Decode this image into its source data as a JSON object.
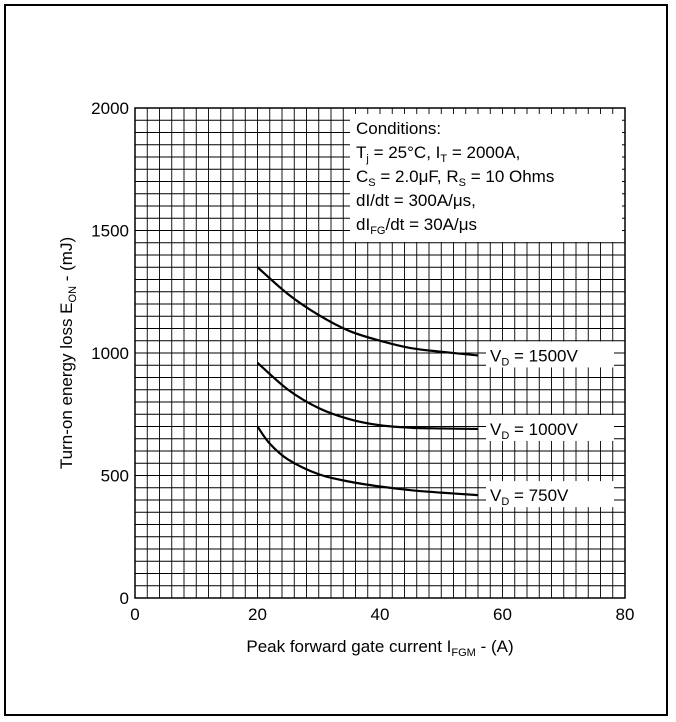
{
  "chart_data": {
    "type": "line",
    "title": "",
    "xlabel": {
      "main": "Peak forward gate current I",
      "sub": "FGM",
      "unit": " - (A)"
    },
    "ylabel": {
      "main": "Turn-on energy loss E",
      "sub": "ON",
      "unit": " - (mJ)"
    },
    "xlim": [
      0,
      80
    ],
    "ylim": [
      0,
      2000
    ],
    "x_ticks": [
      0,
      20,
      40,
      60,
      80
    ],
    "y_ticks": [
      0,
      500,
      1000,
      1500,
      2000
    ],
    "grid": true,
    "conditions": {
      "title": "Conditions:",
      "lines": [
        [
          {
            "t": "T"
          },
          {
            "t": "j",
            "sub": true
          },
          {
            "t": " = 25°C, I"
          },
          {
            "t": "T",
            "sub": true
          },
          {
            "t": " = 2000A,"
          }
        ],
        [
          {
            "t": "C"
          },
          {
            "t": "S",
            "sub": true
          },
          {
            "t": " = 2.0μF, R"
          },
          {
            "t": "S",
            "sub": true
          },
          {
            "t": " = 10 Ohms"
          }
        ],
        [
          {
            "t": "dI/dt = 300A/μs,"
          }
        ],
        [
          {
            "t": "dI"
          },
          {
            "t": "FG",
            "sub": true
          },
          {
            "t": "/dt = 30A/μs"
          }
        ]
      ]
    },
    "series": [
      {
        "name": "V_D = 1500V",
        "label_main": "V",
        "label_sub": "D",
        "label_rest": " = 1500V",
        "x": [
          20,
          25,
          30,
          35,
          40,
          45,
          50,
          56
        ],
        "y": [
          1350,
          1240,
          1155,
          1090,
          1050,
          1020,
          1005,
          990
        ]
      },
      {
        "name": "V_D = 1000V",
        "label_main": "V",
        "label_sub": "D",
        "label_rest": " = 1000V",
        "x": [
          20,
          25,
          30,
          35,
          40,
          45,
          50,
          56
        ],
        "y": [
          960,
          850,
          775,
          730,
          705,
          695,
          692,
          690
        ]
      },
      {
        "name": "V_D = 750V",
        "label_main": "V",
        "label_sub": "D",
        "label_rest": " = 750V",
        "x": [
          20,
          22,
          25,
          30,
          35,
          40,
          45,
          50,
          56
        ],
        "y": [
          700,
          630,
          565,
          505,
          475,
          455,
          440,
          430,
          420
        ]
      }
    ]
  }
}
